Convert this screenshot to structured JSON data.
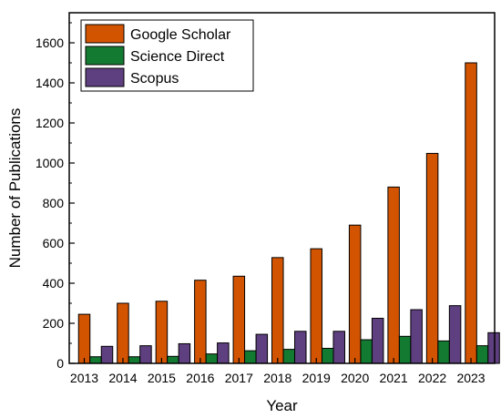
{
  "chart_data": {
    "type": "bar",
    "title": "",
    "xlabel": "Year",
    "ylabel": "Number of Publications",
    "categories": [
      "2013",
      "2014",
      "2015",
      "2016",
      "2017",
      "2018",
      "2019",
      "2020",
      "2021",
      "2022",
      "2023"
    ],
    "series": [
      {
        "name": "Google Scholar",
        "color": "#d35400",
        "values": [
          245,
          300,
          310,
          415,
          435,
          528,
          572,
          690,
          880,
          1048,
          1500
        ]
      },
      {
        "name": "Science Direct",
        "color": "#137a32",
        "values": [
          33,
          33,
          35,
          47,
          63,
          70,
          75,
          118,
          135,
          112,
          88
        ]
      },
      {
        "name": "Scopus",
        "color": "#5e3f80",
        "values": [
          85,
          88,
          98,
          102,
          145,
          160,
          160,
          225,
          268,
          288,
          153
        ]
      }
    ],
    "ylim": [
      0,
      1750
    ],
    "yticks": [
      0,
      200,
      400,
      600,
      800,
      1000,
      1200,
      1400,
      1600
    ],
    "grid": false,
    "legend_position": "top-left"
  }
}
